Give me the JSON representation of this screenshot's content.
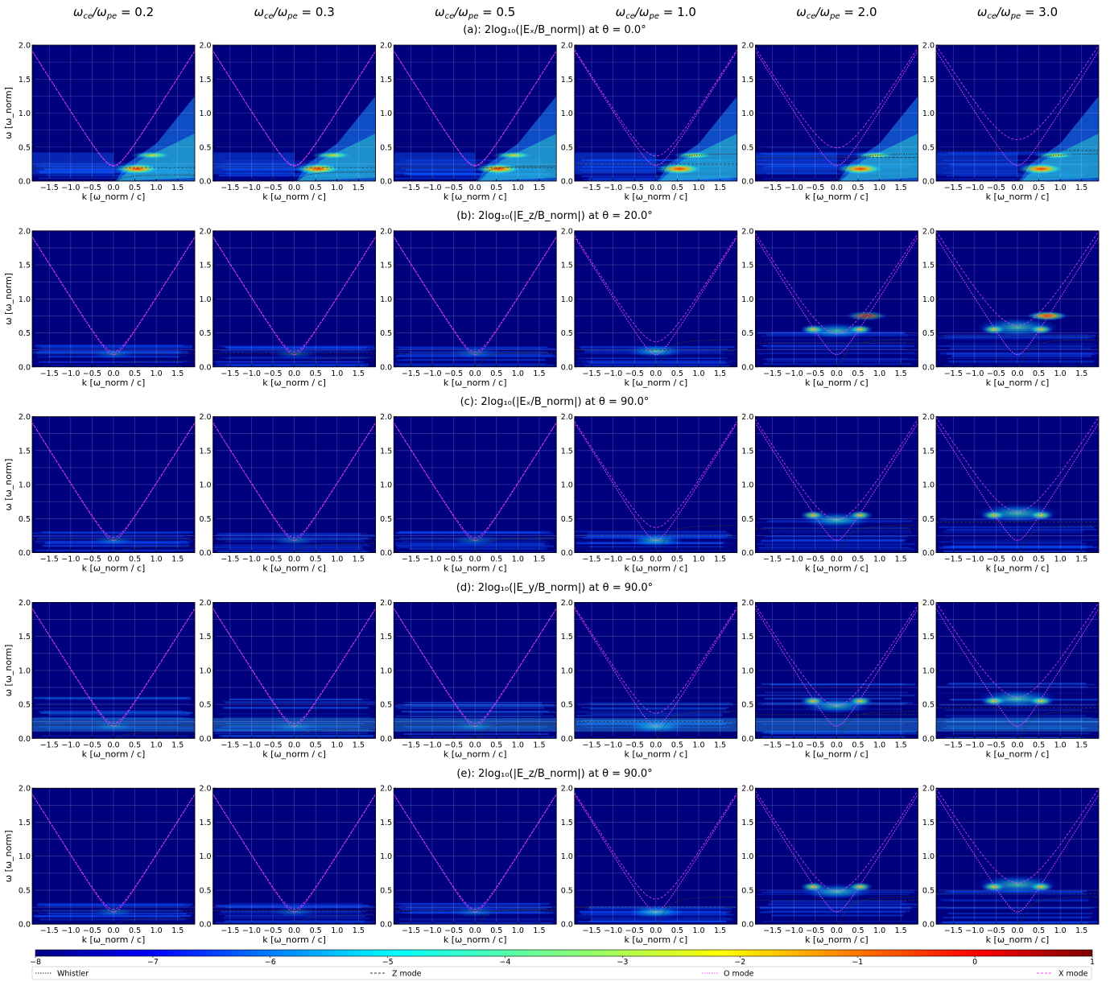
{
  "columns": [
    {
      "lhs": "ω_ce/ω_pe",
      "value": "0.2"
    },
    {
      "lhs": "ω_ce/ω_pe",
      "value": "0.3"
    },
    {
      "lhs": "ω_ce/ω_pe",
      "value": "0.5"
    },
    {
      "lhs": "ω_ce/ω_pe",
      "value": "1.0"
    },
    {
      "lhs": "ω_ce/ω_pe",
      "value": "2.0"
    },
    {
      "lhs": "ω_ce/ω_pe",
      "value": "3.0"
    }
  ],
  "rows": [
    {
      "label": "(a): 2log₁₀(|Eₓ/B_norm|) at θ = 0.0°"
    },
    {
      "label": "(b): 2log₁₀(|E_z/B_norm|) at θ = 20.0°"
    },
    {
      "label": "(c): 2log₁₀(|Eₓ/B_norm|) at θ = 90.0°"
    },
    {
      "label": "(d): 2log₁₀(|E_y/B_norm|) at θ = 90.0°"
    },
    {
      "label": "(e): 2log₁₀(|E_z/B_norm|) at θ = 90.0°"
    }
  ],
  "axes": {
    "xlabel": "k [ω_norm / c]",
    "ylabel": "ω [ω_norm]",
    "xticks": [
      "-1.5",
      "-1.0",
      "-0.5",
      "0.0",
      "0.5",
      "1.0",
      "1.5"
    ],
    "yticks": [
      "0.0",
      "0.5",
      "1.0",
      "1.5",
      "2.0"
    ]
  },
  "colorbar": {
    "ticks": [
      "-8",
      "-7",
      "-6",
      "-5",
      "-4",
      "-3",
      "-2",
      "-1",
      "0",
      "1"
    ],
    "colormap": "jet"
  },
  "legend": [
    {
      "label": "Whistler",
      "style": "dotted",
      "color": "#333333"
    },
    {
      "label": "Z mode",
      "style": "dashed",
      "color": "#333333"
    },
    {
      "label": "O mode",
      "style": "dotted",
      "color": "#ff44ff"
    },
    {
      "label": "X mode",
      "style": "dashed",
      "color": "#ff44ff"
    }
  ],
  "chart_data": {
    "type": "heatmap",
    "layout": "5 rows x 6 columns",
    "x_range": [
      -1.9,
      1.9
    ],
    "y_range": [
      0.0,
      2.0
    ],
    "color_range": [
      -8,
      1
    ],
    "background_value": -8,
    "column_ratios": [
      0.2,
      0.3,
      0.5,
      1.0,
      2.0,
      3.0
    ],
    "grid": true,
    "legend_location": "bottom"
  }
}
